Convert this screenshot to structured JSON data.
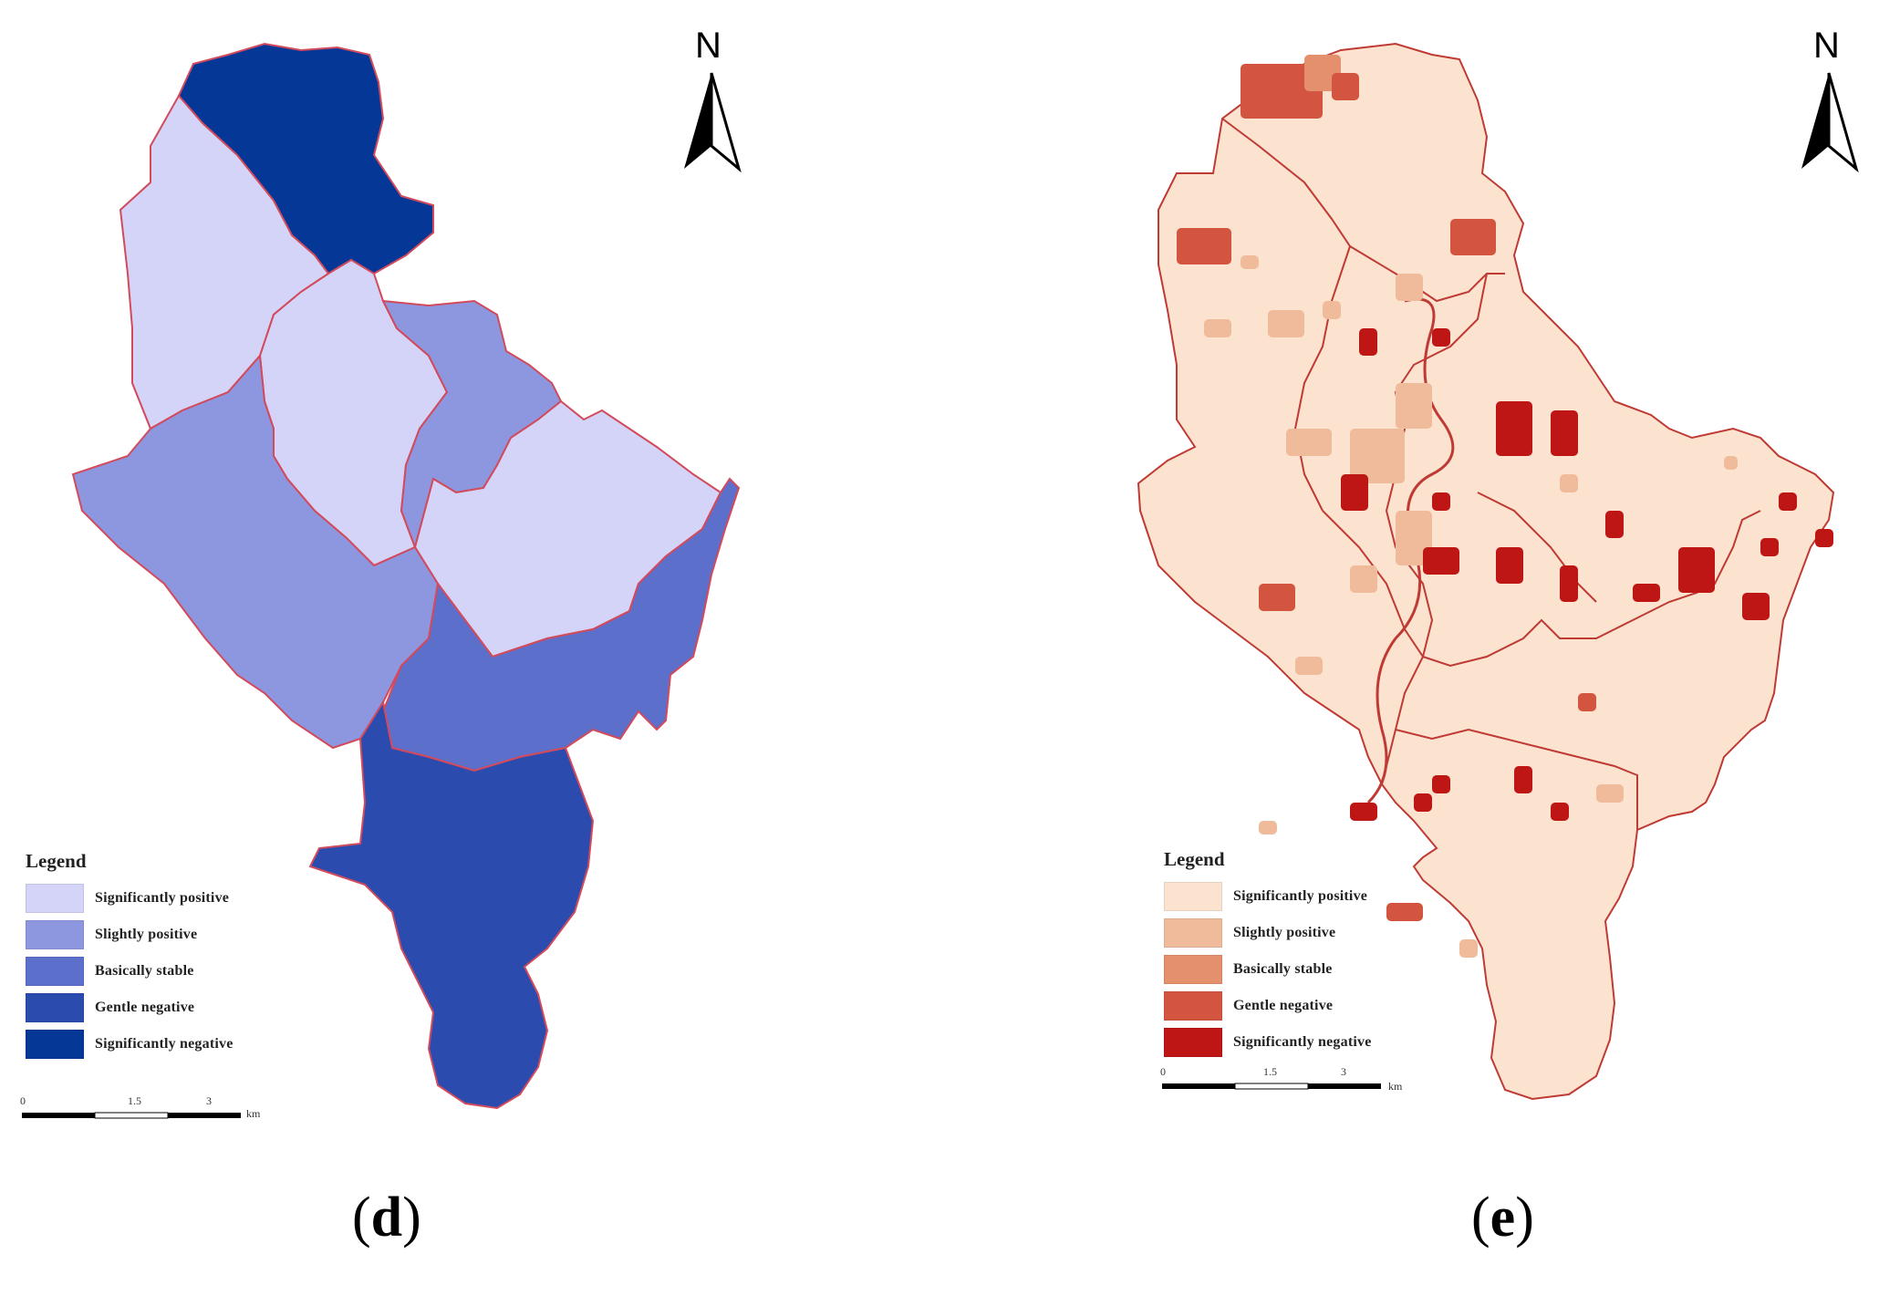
{
  "panels": [
    {
      "label": "d",
      "legend_title": "Legend",
      "legend": [
        {
          "label": "Significantly positive",
          "color": "#d3d4f7"
        },
        {
          "label": "Slightly positive",
          "color": "#8d97e0"
        },
        {
          "label": "Basically stable",
          "color": "#5c6fcb"
        },
        {
          "label": "Gentle negative",
          "color": "#2b4cae"
        },
        {
          "label": "Significantly negative",
          "color": "#053896"
        }
      ],
      "north": "N",
      "scale_ticks": [
        "0",
        "1.5",
        "3"
      ],
      "scale_unit": "km",
      "boundary_color": "#d24a5c"
    },
    {
      "label": "e",
      "legend_title": "Legend",
      "legend": [
        {
          "label": "Significantly positive",
          "color": "#fbe3d0"
        },
        {
          "label": "Slightly positive",
          "color": "#efbb9b"
        },
        {
          "label": "Basically stable",
          "color": "#e4906c"
        },
        {
          "label": "Gentle negative",
          "color": "#d4553f"
        },
        {
          "label": "Significantly negative",
          "color": "#be1515"
        }
      ],
      "north": "N",
      "scale_ticks": [
        "0",
        "1.5",
        "3"
      ],
      "scale_unit": "km",
      "boundary_color": "#c03a34"
    }
  ]
}
